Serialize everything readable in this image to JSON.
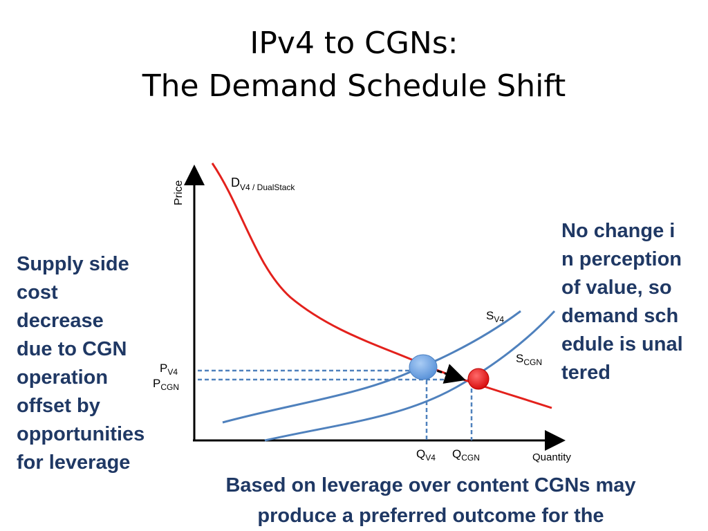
{
  "title": {
    "line1": "IPv4 to CGNs:",
    "line2": "The Demand Schedule Shift"
  },
  "left_note": "Supply side cost decrease due to CGN operation offset by opportunities for leverage",
  "right_note": "No change in perception of value, so demand schedule is unaltered",
  "bottom_note": "Based on leverage over content CGNs may produce a preferred outcome for the",
  "diagram": {
    "y_axis_label": "Price",
    "x_axis_label": "Quantity",
    "demand_curve": {
      "main": "D",
      "sub": "V4 / DualStack"
    },
    "supply_v4": {
      "main": "S",
      "sub": "V4"
    },
    "supply_cgn": {
      "main": "S",
      "sub": "CGN"
    },
    "price_v4": {
      "main": "P",
      "sub": "V4"
    },
    "price_cgn": {
      "main": "P",
      "sub": "CGN"
    },
    "qty_v4": {
      "main": "Q",
      "sub": "V4"
    },
    "qty_cgn": {
      "main": "Q",
      "sub": "CGN"
    },
    "colors": {
      "demand": "#e3211c",
      "supply": "#4f81bd",
      "equilibrium_v4": "#6fa8e8",
      "equilibrium_cgn": "#e02020",
      "text": "#1f3864"
    }
  }
}
